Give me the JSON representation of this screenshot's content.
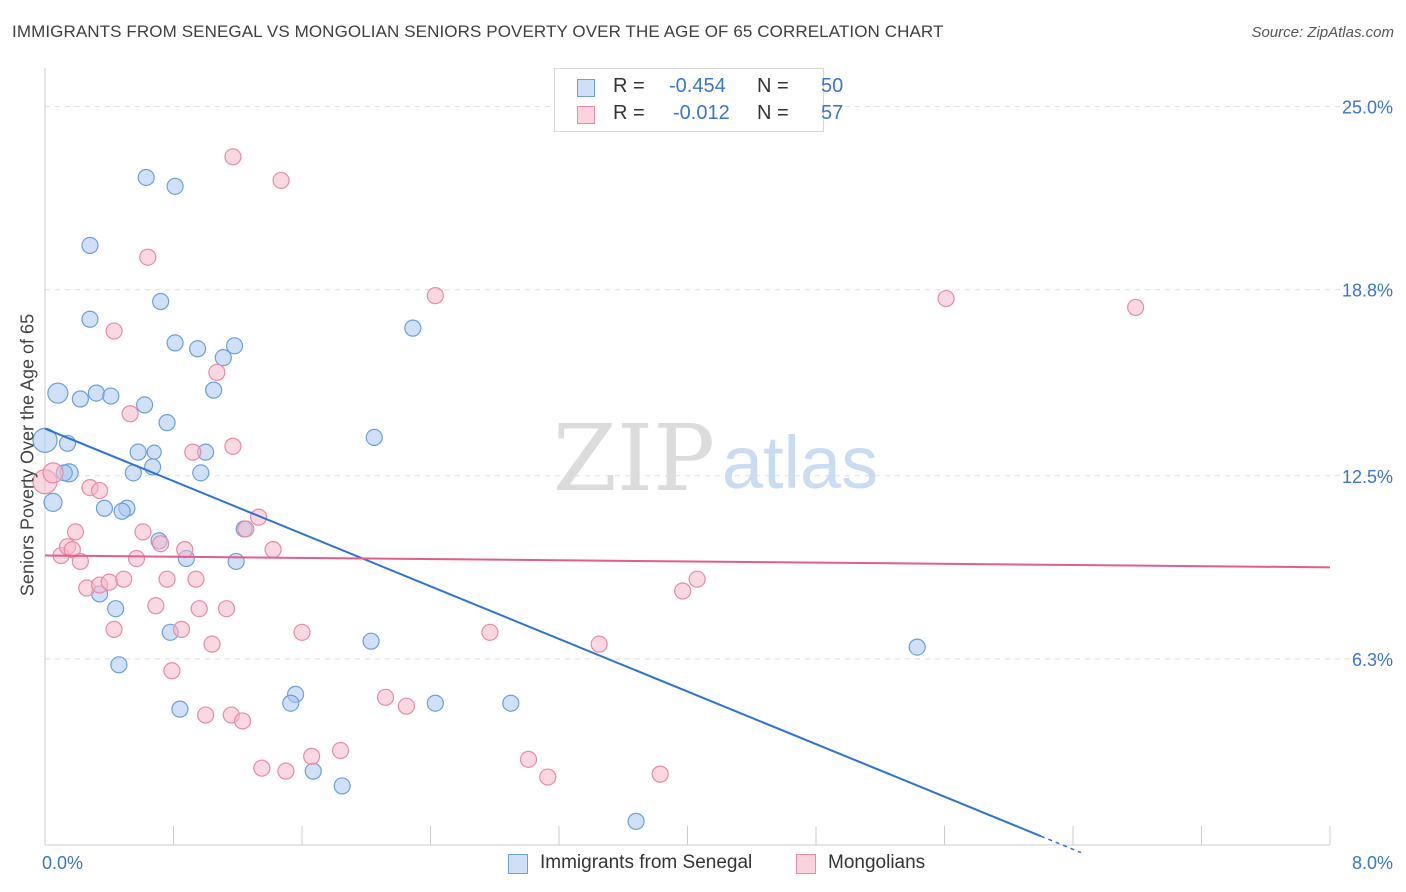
{
  "header": {
    "title": "IMMIGRANTS FROM SENEGAL VS MONGOLIAN SENIORS POVERTY OVER THE AGE OF 65 CORRELATION CHART",
    "source": "Source: ZipAtlas.com"
  },
  "watermark": {
    "zip": "ZIP",
    "atlas": "atlas"
  },
  "stats_legend": {
    "rows": [
      {
        "r_label": "R =",
        "r_value": "-0.454",
        "n_label": "N =",
        "n_value": "50",
        "color": "#a9c8f0"
      },
      {
        "r_label": "R =",
        "r_value": "-0.012",
        "n_label": "N =",
        "n_value": "57",
        "color": "#f5b8cb"
      }
    ]
  },
  "chart_data": {
    "type": "scatter",
    "title": "IMMIGRANTS FROM SENEGAL VS MONGOLIAN SENIORS POVERTY OVER THE AGE OF 65 CORRELATION CHART",
    "xlabel": "",
    "ylabel": "Seniors Poverty Over the Age of 65",
    "xlim": [
      0,
      8
    ],
    "ylim": [
      0,
      25.9
    ],
    "x_tick_labels": [
      "0.0%",
      "8.0%"
    ],
    "y_ticks": [
      6.3,
      12.5,
      18.8,
      25.0
    ],
    "y_tick_labels": [
      "6.3%",
      "12.5%",
      "18.8%",
      "25.0%"
    ],
    "grid": true,
    "legend_position": "bottom",
    "series": [
      {
        "name": "Immigrants from Senegal",
        "color": "#a9c8f0",
        "stroke": "#6d9fd8",
        "points": [
          [
            0.0,
            13.7,
            22
          ],
          [
            0.08,
            15.3,
            18
          ],
          [
            0.05,
            11.6,
            16
          ],
          [
            0.15,
            12.6,
            16
          ],
          [
            0.12,
            12.6,
            14
          ],
          [
            0.14,
            13.6,
            14
          ],
          [
            0.22,
            15.1,
            14
          ],
          [
            0.32,
            15.3,
            14
          ],
          [
            0.41,
            15.2,
            14
          ],
          [
            0.28,
            20.3,
            14
          ],
          [
            0.28,
            17.8,
            14
          ],
          [
            0.63,
            22.6,
            14
          ],
          [
            0.81,
            22.3,
            14
          ],
          [
            0.72,
            18.4,
            14
          ],
          [
            0.81,
            17.0,
            14
          ],
          [
            0.95,
            16.8,
            14
          ],
          [
            1.11,
            16.5,
            14
          ],
          [
            1.18,
            16.9,
            14
          ],
          [
            0.62,
            14.9,
            14
          ],
          [
            0.76,
            14.3,
            14
          ],
          [
            1.05,
            15.4,
            14
          ],
          [
            0.58,
            13.3,
            14
          ],
          [
            0.67,
            12.8,
            14
          ],
          [
            0.55,
            12.6,
            14
          ],
          [
            0.97,
            12.6,
            14
          ],
          [
            1.0,
            13.3,
            14
          ],
          [
            0.37,
            11.4,
            14
          ],
          [
            0.51,
            11.4,
            14
          ],
          [
            0.48,
            11.3,
            14
          ],
          [
            0.71,
            10.3,
            14
          ],
          [
            0.88,
            9.7,
            14
          ],
          [
            1.24,
            10.7,
            14
          ],
          [
            1.19,
            9.6,
            14
          ],
          [
            0.34,
            8.5,
            14
          ],
          [
            0.44,
            8.0,
            14
          ],
          [
            0.78,
            7.2,
            14
          ],
          [
            0.46,
            6.1,
            14
          ],
          [
            0.84,
            4.6,
            14
          ],
          [
            1.56,
            5.1,
            14
          ],
          [
            1.53,
            4.8,
            14
          ],
          [
            1.67,
            2.5,
            14
          ],
          [
            1.85,
            2.0,
            14
          ],
          [
            2.03,
            6.9,
            14
          ],
          [
            2.05,
            13.8,
            14
          ],
          [
            2.29,
            17.5,
            14
          ],
          [
            2.43,
            4.8,
            14
          ],
          [
            2.9,
            4.8,
            14
          ],
          [
            3.68,
            0.8,
            14
          ],
          [
            5.43,
            6.7,
            14
          ],
          [
            0.68,
            13.3,
            12
          ]
        ]
      },
      {
        "name": "Mongolians",
        "color": "#f5b8cb",
        "stroke": "#e88aa8",
        "points": [
          [
            0.0,
            12.3,
            22
          ],
          [
            0.05,
            12.6,
            18
          ],
          [
            0.1,
            9.8,
            14
          ],
          [
            0.14,
            10.1,
            14
          ],
          [
            0.17,
            10.0,
            14
          ],
          [
            0.22,
            9.6,
            14
          ],
          [
            0.19,
            10.6,
            14
          ],
          [
            0.26,
            8.7,
            14
          ],
          [
            0.28,
            12.1,
            14
          ],
          [
            0.34,
            12.0,
            14
          ],
          [
            0.34,
            8.8,
            14
          ],
          [
            0.4,
            8.9,
            14
          ],
          [
            0.43,
            7.3,
            14
          ],
          [
            0.49,
            9.0,
            14
          ],
          [
            0.43,
            17.4,
            14
          ],
          [
            0.53,
            14.6,
            14
          ],
          [
            0.57,
            9.7,
            14
          ],
          [
            0.61,
            10.6,
            14
          ],
          [
            0.64,
            19.9,
            14
          ],
          [
            0.69,
            8.1,
            14
          ],
          [
            0.72,
            10.2,
            14
          ],
          [
            0.76,
            9.0,
            14
          ],
          [
            0.79,
            5.9,
            14
          ],
          [
            0.85,
            7.3,
            14
          ],
          [
            0.87,
            10.0,
            14
          ],
          [
            0.92,
            13.3,
            14
          ],
          [
            0.94,
            9.0,
            14
          ],
          [
            0.96,
            8.0,
            14
          ],
          [
            1.0,
            4.4,
            14
          ],
          [
            1.04,
            6.8,
            14
          ],
          [
            1.07,
            16.0,
            14
          ],
          [
            1.13,
            8.0,
            14
          ],
          [
            1.16,
            4.4,
            14
          ],
          [
            1.17,
            13.5,
            14
          ],
          [
            1.23,
            4.2,
            14
          ],
          [
            1.25,
            10.7,
            14
          ],
          [
            1.17,
            23.3,
            14
          ],
          [
            1.33,
            11.1,
            14
          ],
          [
            1.42,
            10.0,
            14
          ],
          [
            1.47,
            22.5,
            14
          ],
          [
            1.35,
            2.6,
            14
          ],
          [
            1.5,
            2.5,
            14
          ],
          [
            1.6,
            7.2,
            14
          ],
          [
            1.66,
            3.0,
            14
          ],
          [
            1.84,
            3.2,
            14
          ],
          [
            2.12,
            5.0,
            14
          ],
          [
            2.25,
            4.7,
            14
          ],
          [
            2.43,
            18.6,
            14
          ],
          [
            2.77,
            7.2,
            14
          ],
          [
            3.01,
            2.9,
            14
          ],
          [
            3.13,
            2.3,
            14
          ],
          [
            3.45,
            6.8,
            14
          ],
          [
            3.83,
            2.4,
            14
          ],
          [
            3.97,
            8.6,
            14
          ],
          [
            4.06,
            9.0,
            14
          ],
          [
            5.61,
            18.5,
            14
          ],
          [
            6.79,
            18.2,
            14
          ]
        ]
      }
    ],
    "trend_lines": [
      {
        "series": "Immigrants from Senegal",
        "color": "#2f73d0",
        "x": [
          0.0,
          6.2
        ],
        "y": [
          14.1,
          0.3
        ],
        "dashed_extension_to_x": 6.45
      },
      {
        "series": "Mongolians",
        "color": "#e35d8a",
        "x": [
          0.0,
          8.0
        ],
        "y": [
          9.8,
          9.4
        ]
      }
    ]
  },
  "bottom_legend": {
    "items": [
      {
        "label": "Immigrants from Senegal",
        "color": "#a9c8f0",
        "stroke": "#6d9fd8"
      },
      {
        "label": "Mongolians",
        "color": "#f5b8cb",
        "stroke": "#e88aa8"
      }
    ]
  }
}
